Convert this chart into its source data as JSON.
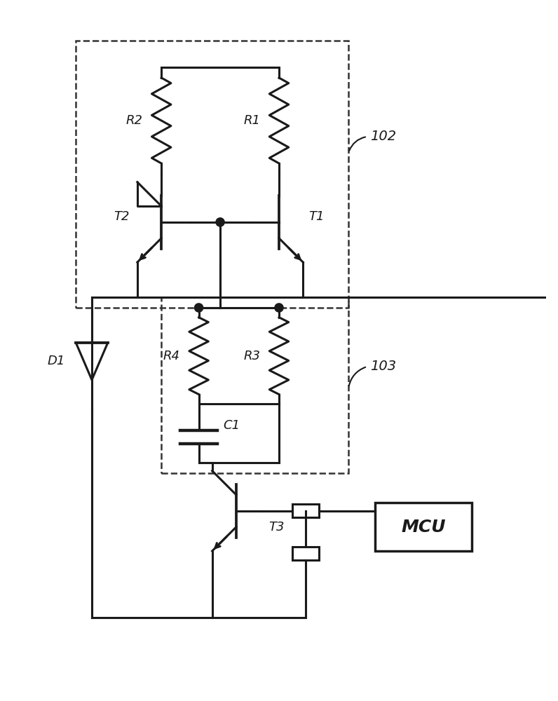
{
  "bg_color": "#ffffff",
  "line_color": "#1a1a1a",
  "lw": 2.2,
  "fig_width": 7.96,
  "fig_height": 10.0,
  "dpi": 100,
  "label_102": "102",
  "label_103": "103",
  "label_R1": "R1",
  "label_R2": "R2",
  "label_R3": "R3",
  "label_R4": "R4",
  "label_C1": "C1",
  "label_D1": "D1",
  "label_T1": "T1",
  "label_T2": "T2",
  "label_T3": "T3",
  "label_MCU": "MCU",
  "font_size_labels": 13,
  "font_size_mcu": 18,
  "font_size_ref": 14
}
